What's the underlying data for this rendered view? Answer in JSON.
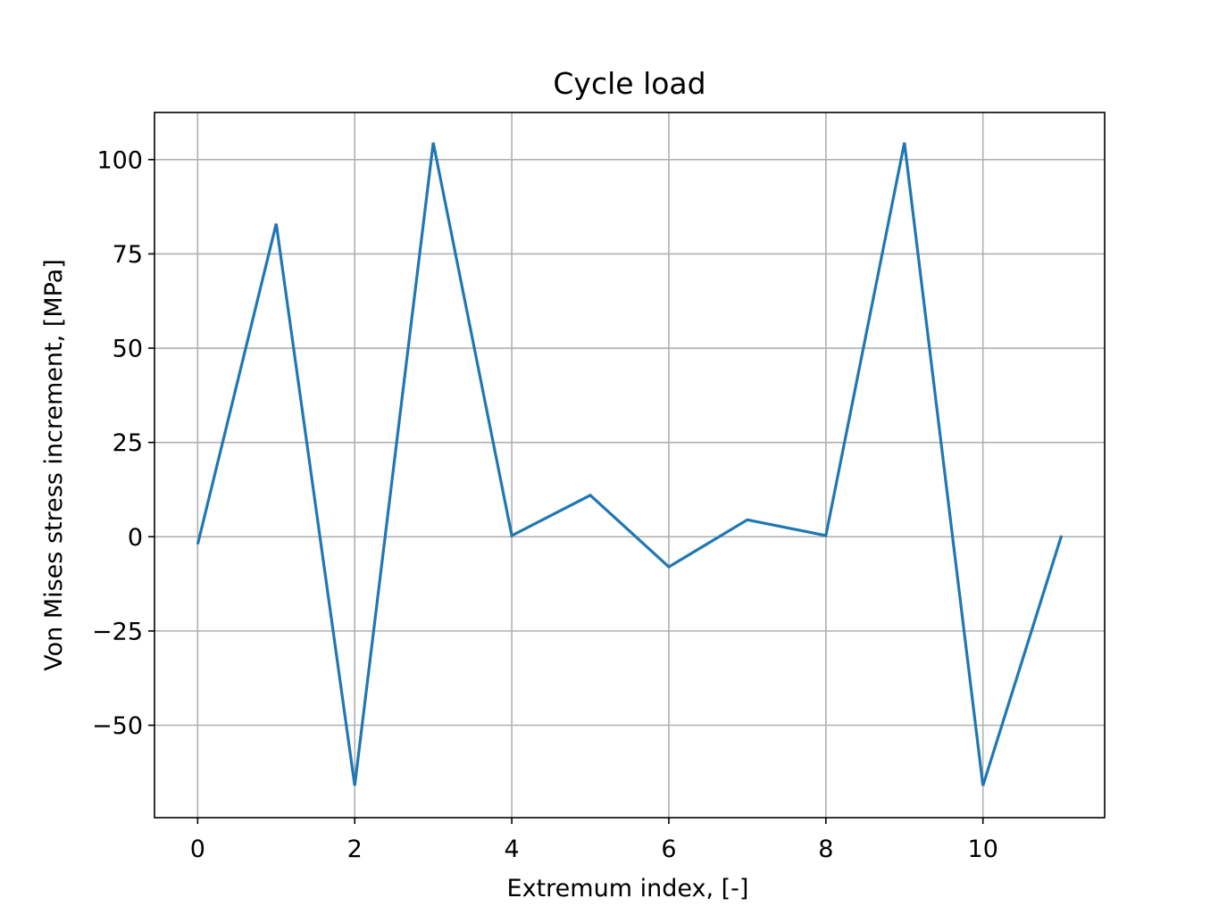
{
  "chart_data": {
    "type": "line",
    "title": "Cycle load",
    "xlabel": "Extremum index, [-]",
    "ylabel": "Von Mises stress increment, [MPa]",
    "xlim": [
      -0.55,
      11.55
    ],
    "ylim": [
      -74.5,
      112.5
    ],
    "xticks": [
      0,
      2,
      4,
      6,
      8,
      10
    ],
    "xtick_labels": [
      "0",
      "2",
      "4",
      "6",
      "8",
      "10"
    ],
    "yticks": [
      -50,
      -25,
      0,
      25,
      50,
      75,
      100
    ],
    "ytick_labels": [
      "−50",
      "−25",
      "0",
      "25",
      "50",
      "75",
      "100"
    ],
    "grid": true,
    "legend": "none",
    "series": [
      {
        "color": "#1f77b4",
        "x": [
          0,
          1,
          2,
          3,
          4,
          5,
          6,
          7,
          8,
          9,
          10,
          11
        ],
        "y": [
          -2,
          83,
          -66,
          104.5,
          0.3,
          11,
          -8,
          4.5,
          0.3,
          104.5,
          -66,
          0.3
        ]
      }
    ]
  }
}
